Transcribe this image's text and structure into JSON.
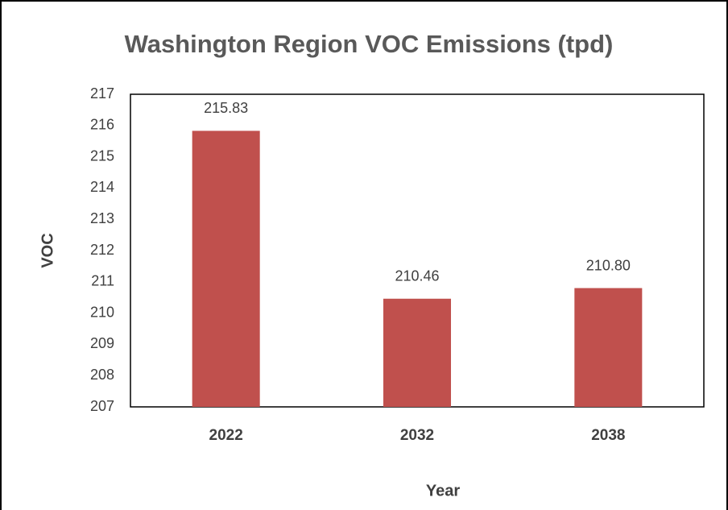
{
  "chart_data": {
    "type": "bar",
    "title": "Washington Region VOC Emissions (tpd)",
    "x_label": "Year",
    "y_label": "VOC",
    "categories": [
      "2022",
      "2032",
      "2038"
    ],
    "values": [
      215.83,
      210.46,
      210.8
    ],
    "value_labels": [
      "215.83",
      "210.46",
      "210.80"
    ],
    "color": "#c0504d",
    "ylim": [
      207,
      217
    ],
    "yticks": [
      207,
      208,
      209,
      210,
      211,
      212,
      213,
      214,
      215,
      216,
      217
    ],
    "grid": false
  }
}
